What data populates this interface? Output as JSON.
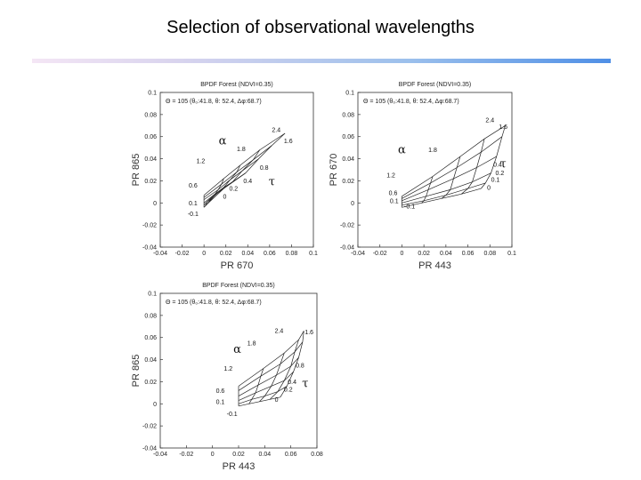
{
  "slide": {
    "title": "Selection of observational wavelengths"
  },
  "chart_data": [
    {
      "type": "line",
      "title": "BPDF Forest (NDVI=0.35)",
      "subtitle": "Θ = 105 (θ₀:41.8, θ: 52.4, Δφ:68.7)",
      "xlabel": "PR 670",
      "ylabel": "PR 865",
      "xlim": [
        -0.04,
        0.1
      ],
      "ylim": [
        -0.04,
        0.1
      ],
      "xticks": [
        "-0.04",
        "-0.02",
        "0",
        "0.02",
        "0.04",
        "0.06",
        "0.08",
        "0.1"
      ],
      "yticks": [
        "-0.04",
        "-0.02",
        "0",
        "0.02",
        "0.04",
        "0.06",
        "0.08",
        "0.1"
      ],
      "alpha_symbol": "α",
      "tau_symbol": "τ",
      "alpha_pos": [
        0.017,
        0.053
      ],
      "tau_pos": [
        0.062,
        0.016
      ],
      "alpha_values": [
        "-0.1",
        "0.1",
        "0.6",
        "1.2",
        "1.8",
        "2.4"
      ],
      "tau_values": [
        "0",
        "0.2",
        "0.4",
        "0.8",
        "1.6"
      ],
      "grid": [
        [
          [
            0.0,
            -0.004
          ],
          [
            0.001,
            -0.003
          ],
          [
            0.002,
            -0.002
          ],
          [
            0.003,
            -0.001
          ],
          [
            0.004,
            0.0
          ]
        ],
        [
          [
            0.0,
            -0.002
          ],
          [
            0.003,
            0.001
          ],
          [
            0.007,
            0.004
          ],
          [
            0.011,
            0.008
          ],
          [
            0.018,
            0.013
          ]
        ],
        [
          [
            0.0,
            0.0
          ],
          [
            0.01,
            0.008
          ],
          [
            0.018,
            0.014
          ],
          [
            0.026,
            0.019
          ],
          [
            0.038,
            0.027
          ]
        ],
        [
          [
            0.0,
            0.003
          ],
          [
            0.013,
            0.012
          ],
          [
            0.024,
            0.021
          ],
          [
            0.035,
            0.029
          ],
          [
            0.05,
            0.04
          ]
        ],
        [
          [
            0.0,
            0.005
          ],
          [
            0.016,
            0.017
          ],
          [
            0.03,
            0.028
          ],
          [
            0.045,
            0.039
          ],
          [
            0.062,
            0.052
          ]
        ],
        [
          [
            0.0,
            0.007
          ],
          [
            0.018,
            0.022
          ],
          [
            0.033,
            0.034
          ],
          [
            0.051,
            0.048
          ],
          [
            0.074,
            0.063
          ]
        ]
      ],
      "alpha_label_pos": [
        [
          -0.01,
          -0.012
        ],
        [
          -0.01,
          -0.002
        ],
        [
          -0.01,
          0.014
        ],
        [
          -0.003,
          0.036
        ],
        [
          0.034,
          0.047
        ],
        [
          0.066,
          0.064
        ]
      ],
      "tau_label_pos": [
        [
          0.019,
          0.004
        ],
        [
          0.027,
          0.011
        ],
        [
          0.04,
          0.018
        ],
        [
          0.055,
          0.03
        ],
        [
          0.077,
          0.054
        ]
      ]
    },
    {
      "type": "line",
      "title": "BPDF Forest (NDVI=0.35)",
      "subtitle": "Θ = 105 (θ₀:41.8, θ: 52.4, Δφ:68.7)",
      "xlabel": "PR 443",
      "ylabel": "PR 670",
      "xlim": [
        -0.04,
        0.1
      ],
      "ylim": [
        -0.04,
        0.1
      ],
      "xticks": [
        "-0.04",
        "-0.02",
        "0",
        "0.02",
        "0.04",
        "0.06",
        "0.08",
        "0.1"
      ],
      "yticks": [
        "-0.04",
        "-0.02",
        "0",
        "0.02",
        "0.04",
        "0.06",
        "0.08",
        "0.1"
      ],
      "alpha_symbol": "α",
      "tau_symbol": "τ",
      "alpha_pos": [
        0.0,
        0.045
      ],
      "tau_pos": [
        0.092,
        0.032
      ],
      "alpha_values": [
        "-0.1",
        "0.1",
        "0.6",
        "1.2",
        "1.8",
        "2.4"
      ],
      "tau_values": [
        "0",
        "0.1",
        "0.2",
        "0.4",
        "1.6"
      ],
      "grid": [
        [
          [
            0.0,
            -0.004
          ],
          [
            0.018,
            0.0
          ],
          [
            0.036,
            0.004
          ],
          [
            0.054,
            0.008
          ],
          [
            0.072,
            0.013
          ]
        ],
        [
          [
            0.0,
            -0.002
          ],
          [
            0.02,
            0.002
          ],
          [
            0.04,
            0.007
          ],
          [
            0.06,
            0.013
          ],
          [
            0.076,
            0.018
          ]
        ],
        [
          [
            0.0,
            0.0
          ],
          [
            0.022,
            0.006
          ],
          [
            0.044,
            0.012
          ],
          [
            0.064,
            0.019
          ],
          [
            0.081,
            0.027
          ]
        ],
        [
          [
            0.0,
            0.002
          ],
          [
            0.024,
            0.012
          ],
          [
            0.047,
            0.022
          ],
          [
            0.068,
            0.032
          ],
          [
            0.086,
            0.042
          ]
        ],
        [
          [
            0.0,
            0.004
          ],
          [
            0.026,
            0.018
          ],
          [
            0.05,
            0.032
          ],
          [
            0.072,
            0.046
          ],
          [
            0.091,
            0.06
          ]
        ],
        [
          [
            0.0,
            0.006
          ],
          [
            0.028,
            0.024
          ],
          [
            0.053,
            0.042
          ],
          [
            0.075,
            0.058
          ],
          [
            0.094,
            0.07
          ]
        ]
      ],
      "alpha_label_pos": [
        [
          0.007,
          -0.005
        ],
        [
          -0.007,
          0.0
        ],
        [
          -0.008,
          0.007
        ],
        [
          -0.01,
          0.023
        ],
        [
          0.028,
          0.046
        ],
        [
          0.08,
          0.073
        ]
      ],
      "tau_label_pos": [
        [
          0.079,
          0.012
        ],
        [
          0.085,
          0.019
        ],
        [
          0.089,
          0.025
        ],
        [
          0.087,
          0.033
        ],
        [
          0.092,
          0.067
        ]
      ]
    },
    {
      "type": "line",
      "title": "BPDF Forest (NDVI=0.35)",
      "subtitle": "Θ = 105 (θ₀:41.8, θ: 52.4, Δφ:68.7)",
      "xlabel": "PR 443",
      "ylabel": "PR 865",
      "xlim": [
        -0.04,
        0.08
      ],
      "ylim": [
        -0.04,
        0.1
      ],
      "xticks": [
        "-0.04",
        "-0.02",
        "0",
        "0.02",
        "0.04",
        "0.06",
        "0.08"
      ],
      "yticks": [
        "-0.04",
        "-0.02",
        "0",
        "0.02",
        "0.04",
        "0.06",
        "0.08",
        "0.1"
      ],
      "alpha_symbol": "α",
      "tau_symbol": "τ",
      "alpha_pos": [
        0.019,
        0.046
      ],
      "tau_pos": [
        0.071,
        0.015
      ],
      "alpha_values": [
        "-0.1",
        "0.1",
        "0.6",
        "1.2",
        "1.8",
        "2.4"
      ],
      "tau_values": [
        "0",
        "0.2",
        "0.4",
        "0.8",
        "1.6"
      ],
      "grid": [
        [
          [
            0.02,
            -0.002
          ],
          [
            0.028,
            0.0
          ],
          [
            0.036,
            0.002
          ],
          [
            0.044,
            0.004
          ],
          [
            0.052,
            0.006
          ]
        ],
        [
          [
            0.02,
            0.0
          ],
          [
            0.03,
            0.004
          ],
          [
            0.04,
            0.007
          ],
          [
            0.05,
            0.011
          ],
          [
            0.057,
            0.016
          ]
        ],
        [
          [
            0.02,
            0.003
          ],
          [
            0.033,
            0.01
          ],
          [
            0.045,
            0.016
          ],
          [
            0.055,
            0.021
          ],
          [
            0.062,
            0.029
          ]
        ],
        [
          [
            0.02,
            0.007
          ],
          [
            0.035,
            0.017
          ],
          [
            0.049,
            0.026
          ],
          [
            0.06,
            0.034
          ],
          [
            0.066,
            0.042
          ]
        ],
        [
          [
            0.02,
            0.012
          ],
          [
            0.037,
            0.025
          ],
          [
            0.052,
            0.036
          ],
          [
            0.063,
            0.047
          ],
          [
            0.069,
            0.056
          ]
        ],
        [
          [
            0.02,
            0.016
          ],
          [
            0.039,
            0.032
          ],
          [
            0.055,
            0.046
          ],
          [
            0.066,
            0.058
          ],
          [
            0.07,
            0.066
          ]
        ]
      ],
      "alpha_label_pos": [
        [
          0.015,
          -0.011
        ],
        [
          0.006,
          0.0
        ],
        [
          0.006,
          0.01
        ],
        [
          0.012,
          0.03
        ],
        [
          0.03,
          0.053
        ],
        [
          0.051,
          0.064
        ]
      ],
      "tau_label_pos": [
        [
          0.049,
          0.002
        ],
        [
          0.058,
          0.011
        ],
        [
          0.061,
          0.018
        ],
        [
          0.067,
          0.033
        ],
        [
          0.074,
          0.063
        ]
      ]
    }
  ]
}
